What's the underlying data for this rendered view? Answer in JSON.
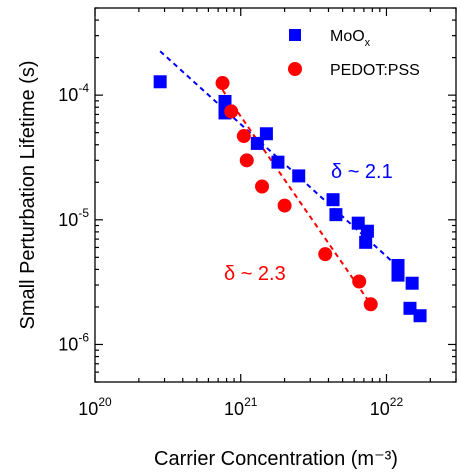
{
  "chart_data": {
    "type": "scatter",
    "xscale": "log",
    "yscale": "log",
    "xlim": [
      1e+20,
      3e+22
    ],
    "ylim": [
      5e-07,
      0.0005
    ],
    "xlabel": "Carrier Concentration (m⁻³)",
    "ylabel": "Small Perturbation Lifetime (s)",
    "x_tick_labels": [
      {
        "value": 1e+20,
        "base": "10",
        "exp": "20"
      },
      {
        "value": 1e+21,
        "base": "10",
        "exp": "21"
      },
      {
        "value": 1e+22,
        "base": "10",
        "exp": "22"
      }
    ],
    "y_tick_labels": [
      {
        "value": 1e-06,
        "base": "10",
        "exp": "-6"
      },
      {
        "value": 1e-05,
        "base": "10",
        "exp": "-5"
      },
      {
        "value": 0.0001,
        "base": "10",
        "exp": "-4"
      }
    ],
    "legend_position": "top-right",
    "grid": false,
    "series": [
      {
        "name": "MoOx",
        "name_base": "MoO",
        "name_sub": "x",
        "marker": "square",
        "color": "#0000ff",
        "points": [
          [
            2.8e+20,
            0.000128
          ],
          [
            7.8e+20,
            8.9e-05
          ],
          [
            7.8e+20,
            7.2e-05
          ],
          [
            1.3e+21,
            4.1e-05
          ],
          [
            1.5e+21,
            4.9e-05
          ],
          [
            1.8e+21,
            2.9e-05
          ],
          [
            2.5e+21,
            2.25e-05
          ],
          [
            4.3e+21,
            1.45e-05
          ],
          [
            4.5e+21,
            1.1e-05
          ],
          [
            6.4e+21,
            9.4e-06
          ],
          [
            7.4e+21,
            8.1e-06
          ],
          [
            7.2e+21,
            6.6e-06
          ],
          [
            1.2e+22,
            4.3e-06
          ],
          [
            1.2e+22,
            3.6e-06
          ],
          [
            1.5e+22,
            3.1e-06
          ],
          [
            1.45e+22,
            1.95e-06
          ],
          [
            1.7e+22,
            1.7e-06
          ]
        ],
        "fit": {
          "x": [
            2.8e+20,
            1.2e+22
          ],
          "y": [
            0.000225,
            4.2e-06
          ],
          "style": "dashed"
        },
        "annotation": "δ ~ 2.1"
      },
      {
        "name": "PEDOT:PSS",
        "marker": "circle",
        "color": "#ff0000",
        "points": [
          [
            7.5e+20,
            0.000125
          ],
          [
            8.6e+20,
            7.4e-05
          ],
          [
            1.05e+21,
            4.7e-05
          ],
          [
            1.1e+21,
            3e-05
          ],
          [
            1.4e+21,
            1.85e-05
          ],
          [
            2e+21,
            1.3e-05
          ],
          [
            3.8e+21,
            5.3e-06
          ],
          [
            6.5e+21,
            3.2e-06
          ],
          [
            7.8e+21,
            2.1e-06
          ]
        ],
        "fit": {
          "x": [
            7.5e+20,
            7.8e+21
          ],
          "y": [
            0.00011,
            2.1e-06
          ],
          "style": "dashed"
        },
        "annotation": "δ ~ 2.3"
      }
    ]
  }
}
